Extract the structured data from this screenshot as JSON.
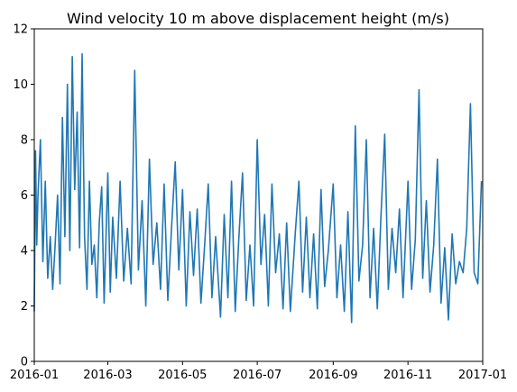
{
  "chart_data": {
    "type": "line",
    "title": "Wind velocity 10 m above displacement height (m/s)",
    "xlabel": "",
    "ylabel": "",
    "x_axis": "date",
    "xlim": [
      "2016-01-01",
      "2017-01-01"
    ],
    "ylim": [
      0,
      12
    ],
    "x_ticks": [
      "2016-01",
      "2016-03",
      "2016-05",
      "2016-07",
      "2016-09",
      "2016-11",
      "2017-01"
    ],
    "y_ticks": [
      0,
      2,
      4,
      6,
      8,
      10,
      12
    ],
    "grid": false,
    "legend": "none",
    "series": [
      {
        "color": "#1f77b4",
        "x": [
          "2016-01-01",
          "2016-01-02",
          "2016-01-03",
          "2016-01-04",
          "2016-01-06",
          "2016-01-08",
          "2016-01-10",
          "2016-01-12",
          "2016-01-14",
          "2016-01-16",
          "2016-01-18",
          "2016-01-20",
          "2016-01-22",
          "2016-01-24",
          "2016-01-26",
          "2016-01-28",
          "2016-01-30",
          "2016-02-01",
          "2016-02-03",
          "2016-02-05",
          "2016-02-07",
          "2016-02-09",
          "2016-02-11",
          "2016-02-13",
          "2016-02-15",
          "2016-02-17",
          "2016-02-19",
          "2016-02-21",
          "2016-02-23",
          "2016-02-25",
          "2016-02-27",
          "2016-03-01",
          "2016-03-03",
          "2016-03-05",
          "2016-03-08",
          "2016-03-11",
          "2016-03-14",
          "2016-03-17",
          "2016-03-20",
          "2016-03-23",
          "2016-03-26",
          "2016-03-29",
          "2016-04-01",
          "2016-04-04",
          "2016-04-07",
          "2016-04-10",
          "2016-04-13",
          "2016-04-16",
          "2016-04-19",
          "2016-04-22",
          "2016-04-25",
          "2016-04-28",
          "2016-05-01",
          "2016-05-04",
          "2016-05-07",
          "2016-05-10",
          "2016-05-13",
          "2016-05-16",
          "2016-05-19",
          "2016-05-22",
          "2016-05-25",
          "2016-05-28",
          "2016-06-01",
          "2016-06-04",
          "2016-06-07",
          "2016-06-10",
          "2016-06-13",
          "2016-06-16",
          "2016-06-19",
          "2016-06-22",
          "2016-06-25",
          "2016-06-28",
          "2016-07-01",
          "2016-07-04",
          "2016-07-07",
          "2016-07-10",
          "2016-07-13",
          "2016-07-16",
          "2016-07-19",
          "2016-07-22",
          "2016-07-25",
          "2016-07-28",
          "2016-08-01",
          "2016-08-04",
          "2016-08-07",
          "2016-08-10",
          "2016-08-13",
          "2016-08-16",
          "2016-08-19",
          "2016-08-22",
          "2016-08-25",
          "2016-08-28",
          "2016-09-01",
          "2016-09-04",
          "2016-09-07",
          "2016-09-10",
          "2016-09-13",
          "2016-09-16",
          "2016-09-19",
          "2016-09-22",
          "2016-09-25",
          "2016-09-28",
          "2016-10-01",
          "2016-10-04",
          "2016-10-07",
          "2016-10-10",
          "2016-10-13",
          "2016-10-16",
          "2016-10-19",
          "2016-10-22",
          "2016-10-25",
          "2016-10-28",
          "2016-11-01",
          "2016-11-04",
          "2016-11-07",
          "2016-11-10",
          "2016-11-13",
          "2016-11-16",
          "2016-11-19",
          "2016-11-22",
          "2016-11-25",
          "2016-11-28",
          "2016-12-01",
          "2016-12-04",
          "2016-12-07",
          "2016-12-10",
          "2016-12-13",
          "2016-12-16",
          "2016-12-19",
          "2016-12-22",
          "2016-12-25",
          "2016-12-28",
          "2016-12-31"
        ],
        "y": [
          1.8,
          7.6,
          4.2,
          6.0,
          8.0,
          3.6,
          6.5,
          3.0,
          4.5,
          2.6,
          4.2,
          6.0,
          2.8,
          8.8,
          4.5,
          10.0,
          4.0,
          11.0,
          6.2,
          9.0,
          4.1,
          11.1,
          4.5,
          2.6,
          6.5,
          3.5,
          4.2,
          2.3,
          5.0,
          6.3,
          2.1,
          6.8,
          2.5,
          5.2,
          3.0,
          6.5,
          2.9,
          4.8,
          2.8,
          10.5,
          3.3,
          5.8,
          2.0,
          7.3,
          3.5,
          5.0,
          2.6,
          6.4,
          2.2,
          4.8,
          7.2,
          3.3,
          6.2,
          2.0,
          5.4,
          3.1,
          5.5,
          2.1,
          4.2,
          6.4,
          2.3,
          4.5,
          1.6,
          5.3,
          2.3,
          6.5,
          1.8,
          4.5,
          6.8,
          2.2,
          4.2,
          2.0,
          8.0,
          3.5,
          5.3,
          2.0,
          6.4,
          3.2,
          4.6,
          1.9,
          5.0,
          1.8,
          4.6,
          6.5,
          2.5,
          5.2,
          2.3,
          4.6,
          1.9,
          6.2,
          2.7,
          4.0,
          6.4,
          2.3,
          4.2,
          1.8,
          5.4,
          1.4,
          8.5,
          2.9,
          4.2,
          8.0,
          2.3,
          4.8,
          1.9,
          5.3,
          8.2,
          2.6,
          4.8,
          3.2,
          5.5,
          2.3,
          6.5,
          2.6,
          4.4,
          9.8,
          3.0,
          5.8,
          2.5,
          4.2,
          7.3,
          2.1,
          4.1,
          1.5,
          4.6,
          2.8,
          3.6,
          3.2,
          4.8,
          9.3,
          3.2,
          2.8,
          6.5
        ]
      }
    ]
  }
}
